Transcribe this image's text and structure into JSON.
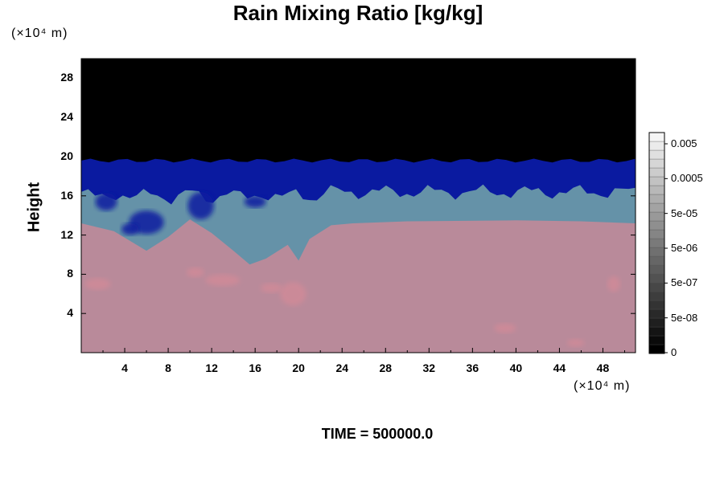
{
  "chart_data": {
    "type": "heatmap",
    "title": "Rain Mixing Ratio [kg/kg]",
    "ylabel": "Height",
    "y_unit": "(×10⁴ m)",
    "x_unit": "(×10⁴ m)",
    "x_ticks": [
      "4",
      "8",
      "12",
      "16",
      "20",
      "24",
      "28",
      "32",
      "36",
      "40",
      "44",
      "48"
    ],
    "y_ticks": [
      "4",
      "8",
      "12",
      "16",
      "20",
      "24",
      "28"
    ],
    "xlim": [
      0,
      51
    ],
    "ylim": [
      0,
      30
    ],
    "footer": "TIME = 500000.0",
    "colorbar": {
      "labels": [
        "0.005",
        "0.0005",
        "5e-05",
        "5e-06",
        "5e-07",
        "5e-08",
        "0"
      ],
      "log_scale": true
    },
    "regions": [
      {
        "level": "0",
        "color": "#000000",
        "y_range": [
          19.5,
          30
        ]
      },
      {
        "level": "saturated-high",
        "color": "#0a1aa0",
        "y_range": [
          16.5,
          20
        ]
      },
      {
        "level": "mid",
        "color": "#6fa0a8",
        "y_range": [
          13.5,
          16.5
        ]
      },
      {
        "level": "low",
        "color": "#b98a9a",
        "y_range": [
          0,
          13.5
        ]
      }
    ],
    "colors": {
      "background": "#000000",
      "band_blue": "#0a1aa0",
      "band_teal": "#6fa0a8",
      "lower_pink": "#b98a9a",
      "pink_highlight": "#d48a98"
    }
  }
}
